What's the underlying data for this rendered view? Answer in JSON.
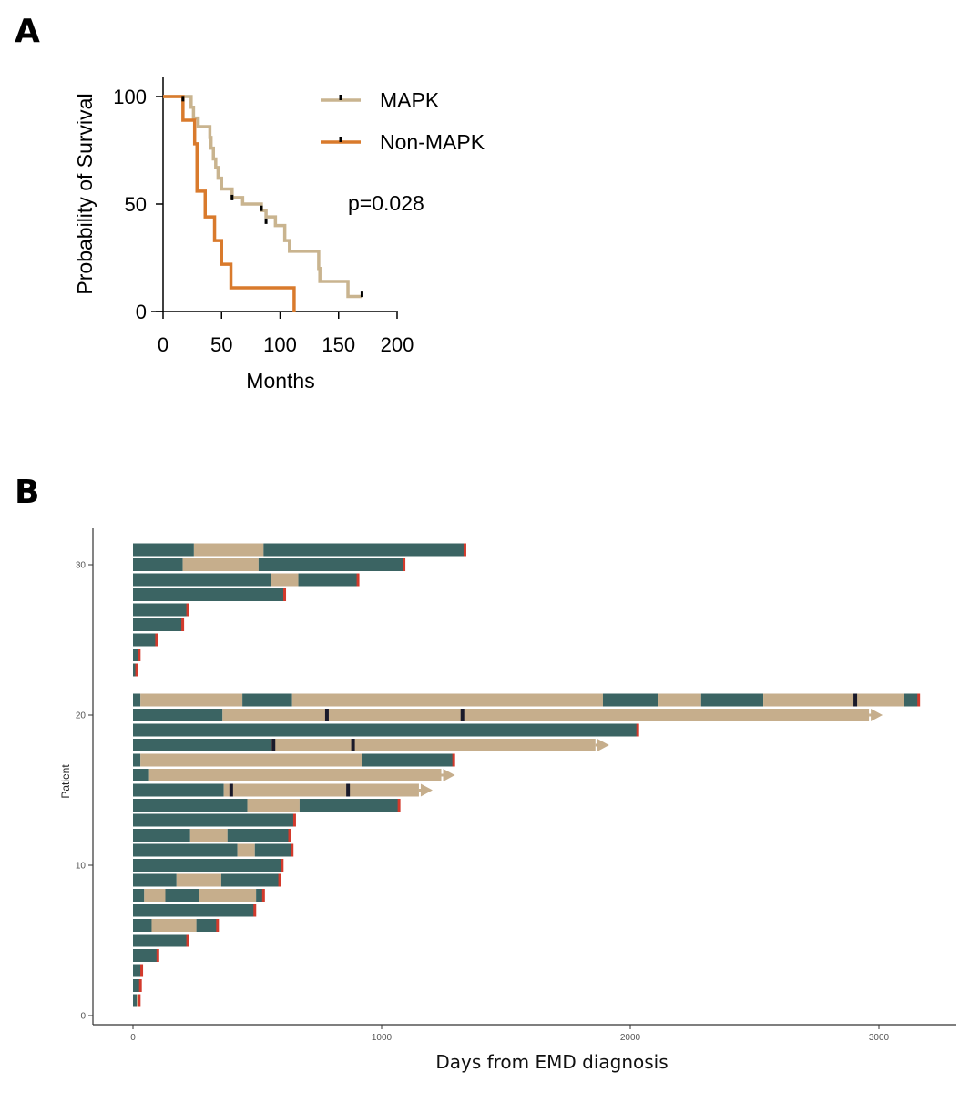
{
  "panels": {
    "a_label": "A",
    "b_label": "B"
  },
  "chart_data": [
    {
      "type": "line",
      "subtype": "kaplan-meier",
      "xlabel": "Months",
      "ylabel": "Probability of Survival",
      "xlim": [
        0,
        200
      ],
      "ylim": [
        0,
        100
      ],
      "x_ticks": [
        0,
        50,
        100,
        150,
        200
      ],
      "y_ticks": [
        0,
        50,
        100
      ],
      "annotation": "p=0.028",
      "legend_position": "top-right",
      "series": [
        {
          "name": "MAPK",
          "color": "#c9b48f",
          "steps": [
            [
              0,
              100
            ],
            [
              22,
              100
            ],
            [
              24,
              95
            ],
            [
              26,
              90
            ],
            [
              30,
              86
            ],
            [
              38,
              86
            ],
            [
              40,
              81
            ],
            [
              41,
              76
            ],
            [
              43,
              71
            ],
            [
              45,
              67
            ],
            [
              47,
              62
            ],
            [
              50,
              57
            ],
            [
              59,
              53
            ],
            [
              68,
              50
            ],
            [
              84,
              47
            ],
            [
              88,
              44
            ],
            [
              96,
              40
            ],
            [
              104,
              33
            ],
            [
              108,
              28
            ],
            [
              132,
              28
            ],
            [
              133,
              20
            ],
            [
              134,
              14
            ],
            [
              156,
              14
            ],
            [
              158,
              7
            ],
            [
              170,
              7
            ]
          ],
          "censors": [
            [
              59,
              53
            ],
            [
              84,
              48
            ],
            [
              88,
              42
            ],
            [
              170,
              8
            ]
          ]
        },
        {
          "name": "Non-MAPK",
          "color": "#d97a2c",
          "steps": [
            [
              0,
              100
            ],
            [
              16,
              100
            ],
            [
              17,
              89
            ],
            [
              26,
              89
            ],
            [
              27,
              78
            ],
            [
              29,
              56
            ],
            [
              35,
              56
            ],
            [
              36,
              44
            ],
            [
              43,
              44
            ],
            [
              44,
              33
            ],
            [
              49,
              33
            ],
            [
              50,
              22
            ],
            [
              57,
              22
            ],
            [
              58,
              11
            ],
            [
              111,
              11
            ],
            [
              112,
              0
            ]
          ],
          "censors": [
            [
              17,
              99
            ]
          ]
        }
      ]
    },
    {
      "type": "bar",
      "subtype": "swimmer",
      "orientation": "horizontal",
      "xlabel": "Days from EMD diagnosis",
      "ylabel": "Patient",
      "xlim": [
        0,
        3300
      ],
      "x_ticks": [
        0,
        1000,
        2000,
        3000
      ],
      "y_ticks": [
        0,
        10,
        20,
        30
      ],
      "colors": {
        "teal": "#3b6463",
        "tan": "#c6ae8c",
        "event": "#d33a2c",
        "marker": "#1a1a2a"
      },
      "patients": [
        {
          "y": 1,
          "segments": [
            [
              0,
              15,
              "teal"
            ],
            [
              15,
              25,
              "tan"
            ]
          ],
          "end": "event"
        },
        {
          "y": 2,
          "segments": [
            [
              0,
              30,
              "teal"
            ]
          ],
          "end": "event"
        },
        {
          "y": 3,
          "segments": [
            [
              0,
              35,
              "teal"
            ]
          ],
          "end": "event"
        },
        {
          "y": 4,
          "segments": [
            [
              0,
              100,
              "teal"
            ]
          ],
          "end": "event"
        },
        {
          "y": 5,
          "segments": [
            [
              0,
              220,
              "teal"
            ]
          ],
          "end": "event"
        },
        {
          "y": 6,
          "segments": [
            [
              0,
              75,
              "teal"
            ],
            [
              75,
              255,
              "tan"
            ],
            [
              255,
              340,
              "teal"
            ]
          ],
          "end": "event"
        },
        {
          "y": 7,
          "segments": [
            [
              0,
              490,
              "teal"
            ]
          ],
          "end": "event"
        },
        {
          "y": 8,
          "segments": [
            [
              0,
              45,
              "teal"
            ],
            [
              45,
              130,
              "tan"
            ],
            [
              130,
              265,
              "teal"
            ],
            [
              265,
              495,
              "tan"
            ],
            [
              495,
              525,
              "teal"
            ]
          ],
          "end": "event"
        },
        {
          "y": 9,
          "segments": [
            [
              0,
              175,
              "teal"
            ],
            [
              175,
              355,
              "tan"
            ],
            [
              355,
              590,
              "teal"
            ]
          ],
          "end": "event"
        },
        {
          "y": 10,
          "segments": [
            [
              0,
              600,
              "teal"
            ]
          ],
          "end": "event"
        },
        {
          "y": 11,
          "segments": [
            [
              0,
              420,
              "teal"
            ],
            [
              420,
              490,
              "tan"
            ],
            [
              490,
              640,
              "teal"
            ]
          ],
          "end": "event"
        },
        {
          "y": 12,
          "segments": [
            [
              0,
              230,
              "teal"
            ],
            [
              230,
              380,
              "tan"
            ],
            [
              380,
              630,
              "teal"
            ]
          ],
          "end": "event"
        },
        {
          "y": 13,
          "segments": [
            [
              0,
              650,
              "teal"
            ]
          ],
          "end": "event"
        },
        {
          "y": 14,
          "segments": [
            [
              0,
              460,
              "teal"
            ],
            [
              460,
              670,
              "tan"
            ],
            [
              670,
              1070,
              "teal"
            ]
          ],
          "end": "event"
        },
        {
          "y": 15,
          "segments": [
            [
              0,
              365,
              "teal"
            ],
            [
              365,
              1150,
              "tan"
            ]
          ],
          "markers": [
            395,
            865
          ],
          "end": "arrow"
        },
        {
          "y": 16,
          "segments": [
            [
              0,
              65,
              "teal"
            ],
            [
              65,
              1240,
              "tan"
            ]
          ],
          "end": "arrow"
        },
        {
          "y": 17,
          "segments": [
            [
              0,
              30,
              "teal"
            ],
            [
              30,
              920,
              "tan"
            ],
            [
              920,
              1290,
              "teal"
            ]
          ],
          "end": "event"
        },
        {
          "y": 18,
          "segments": [
            [
              0,
              555,
              "teal"
            ],
            [
              555,
              1860,
              "tan"
            ]
          ],
          "markers": [
            565,
            885
          ],
          "end": "arrow"
        },
        {
          "y": 19,
          "segments": [
            [
              0,
              2030,
              "teal"
            ]
          ],
          "end": "event"
        },
        {
          "y": 20,
          "segments": [
            [
              0,
              360,
              "teal"
            ],
            [
              360,
              2960,
              "tan"
            ]
          ],
          "markers": [
            780,
            1325
          ],
          "end": "arrow"
        },
        {
          "y": 21,
          "segments": [
            [
              0,
              30,
              "teal"
            ],
            [
              30,
              440,
              "tan"
            ],
            [
              440,
              640,
              "teal"
            ],
            [
              640,
              1890,
              "tan"
            ],
            [
              1890,
              2110,
              "teal"
            ],
            [
              2110,
              2285,
              "tan"
            ],
            [
              2285,
              2535,
              "teal"
            ],
            [
              2535,
              3100,
              "tan"
            ],
            [
              3100,
              3160,
              "teal"
            ]
          ],
          "markers": [
            2905
          ],
          "end": "event"
        },
        {
          "y": 23,
          "segments": [
            [
              0,
              15,
              "teal"
            ]
          ],
          "end": "event"
        },
        {
          "y": 24,
          "segments": [
            [
              0,
              25,
              "teal"
            ]
          ],
          "end": "event"
        },
        {
          "y": 25,
          "segments": [
            [
              0,
              95,
              "teal"
            ]
          ],
          "end": "event"
        },
        {
          "y": 26,
          "segments": [
            [
              0,
              200,
              "teal"
            ]
          ],
          "end": "event"
        },
        {
          "y": 27,
          "segments": [
            [
              0,
              220,
              "teal"
            ]
          ],
          "end": "event"
        },
        {
          "y": 28,
          "segments": [
            [
              0,
              610,
              "teal"
            ]
          ],
          "end": "event"
        },
        {
          "y": 29,
          "segments": [
            [
              0,
              555,
              "teal"
            ],
            [
              555,
              665,
              "tan"
            ],
            [
              665,
              905,
              "teal"
            ]
          ],
          "end": "event"
        },
        {
          "y": 30,
          "segments": [
            [
              0,
              200,
              "teal"
            ],
            [
              200,
              505,
              "tan"
            ],
            [
              505,
              1090,
              "teal"
            ]
          ],
          "end": "event"
        },
        {
          "y": 31,
          "segments": [
            [
              0,
              245,
              "teal"
            ],
            [
              245,
              525,
              "tan"
            ],
            [
              525,
              1335,
              "teal"
            ]
          ],
          "end": "event"
        }
      ]
    }
  ]
}
